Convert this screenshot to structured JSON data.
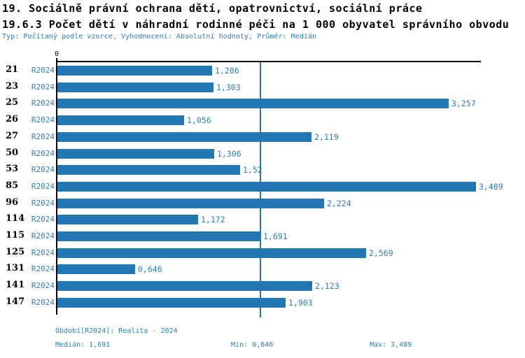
{
  "header": {
    "title": "19. Sociálně právní ochrana dětí, opatrovnictví, sociální práce",
    "subtitle": "19.6.3 Počet dětí v náhradní rodinné péči na 1 000 obyvatel správního obvodu",
    "meta": "Typ: Počítaný podle vzorce, Vyhodnocení: Absolutní hodnoty, Průměr: Medián"
  },
  "chart_data": {
    "type": "bar",
    "orientation": "horizontal",
    "title": "19.6.3 Počet dětí v náhradní rodinné péči na 1 000 obyvatel správního obvodu",
    "series_label": "R2024",
    "axis_origin_label": "0",
    "categories": [
      "21",
      "23",
      "25",
      "26",
      "27",
      "50",
      "53",
      "85",
      "96",
      "114",
      "115",
      "125",
      "131",
      "141",
      "147"
    ],
    "values": [
      1.286,
      1.303,
      3.257,
      1.056,
      2.119,
      1.306,
      1.52,
      3.489,
      2.224,
      1.172,
      1.691,
      2.569,
      0.646,
      2.123,
      1.903
    ],
    "value_labels": [
      "1,286",
      "1,303",
      "3,257",
      "1,056",
      "2,119",
      "1,306",
      "1,52",
      "3,489",
      "2,224",
      "1,172",
      "1,691",
      "2,569",
      "0,646",
      "2,123",
      "1,903"
    ],
    "xlim": [
      0,
      3.53
    ],
    "median_line_value": 1.691,
    "grid": "off",
    "legend": "none",
    "bar_color": "#2277b4"
  },
  "footer": {
    "period": "Období[R2024]: Realita - 2024",
    "median": "Medián: 1,691",
    "min": "Min: 0,646",
    "max": "Max: 3,489"
  },
  "colors": {
    "bar": "#2277b4",
    "text_blue": "#2e7fb8",
    "axis_black": "#000000",
    "background": "#ffffff"
  }
}
